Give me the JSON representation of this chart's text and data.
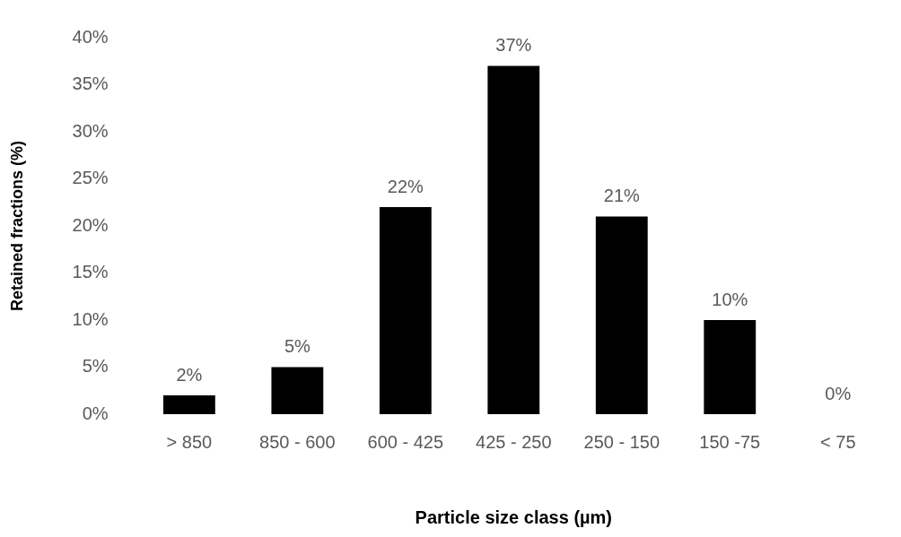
{
  "chart_data": {
    "type": "bar",
    "xlabel": "Particle size class (µm)",
    "ylabel": "Retained fractions (%)",
    "categories": [
      "> 850",
      "850 - 600",
      "600 - 425",
      "425 - 250",
      "250 - 150",
      "150 -75",
      "< 75"
    ],
    "values": [
      2,
      5,
      22,
      37,
      21,
      10,
      0
    ],
    "color": "#000000",
    "value_labels": [
      "2%",
      "5%",
      "22%",
      "37%",
      "21%",
      "10%",
      "0%"
    ],
    "ylim": [
      0,
      40
    ],
    "yticks": [
      {
        "value": 0,
        "label": "0%"
      },
      {
        "value": 5,
        "label": "5%"
      },
      {
        "value": 10,
        "label": "10%"
      },
      {
        "value": 15,
        "label": "15%"
      },
      {
        "value": 20,
        "label": "20%"
      },
      {
        "value": 25,
        "label": "25%"
      },
      {
        "value": 30,
        "label": "30%"
      },
      {
        "value": 35,
        "label": "35%"
      },
      {
        "value": 40,
        "label": "40%"
      }
    ],
    "grid": false,
    "legend": false
  }
}
